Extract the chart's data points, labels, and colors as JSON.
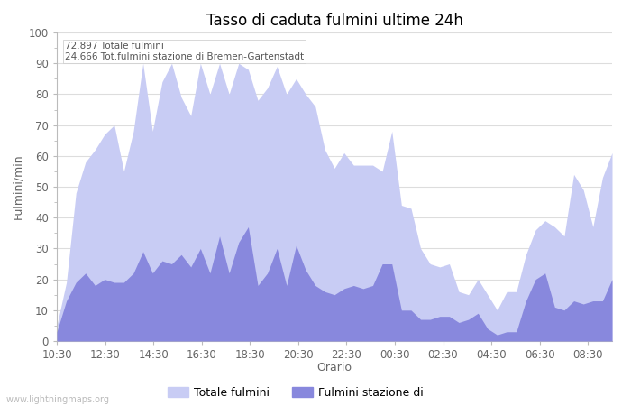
{
  "title": "Tasso di caduta fulmini ultime 24h",
  "xlabel": "Orario",
  "ylabel": "Fulmini/min",
  "ylim": [
    0,
    100
  ],
  "annotation_line1": "72.897 Totale fulmini",
  "annotation_line2": "24.666 Tot.fulmini stazione di Bremen-Gartenstadt",
  "color_total": "#c8ccf4",
  "color_station": "#8888dd",
  "legend_label_total": "Totale fulmini",
  "legend_label_station": "Fulmini stazione di",
  "watermark": "www.lightningmaps.org",
  "x_labels": [
    "10:30",
    "12:30",
    "14:30",
    "16:30",
    "18:30",
    "20:30",
    "22:30",
    "00:30",
    "02:30",
    "04:30",
    "06:30",
    "08:30"
  ],
  "total_values": [
    5,
    19,
    48,
    58,
    62,
    67,
    70,
    55,
    68,
    90,
    68,
    84,
    90,
    79,
    73,
    90,
    80,
    90,
    80,
    90,
    88,
    78,
    82,
    89,
    80,
    85,
    80,
    76,
    62,
    56,
    61,
    57,
    57,
    57,
    55,
    68,
    44,
    43,
    30,
    25,
    24,
    25,
    16,
    15,
    20,
    15,
    10,
    16,
    16,
    28,
    36,
    39,
    37,
    34,
    54,
    49,
    37,
    53,
    61
  ],
  "station_values": [
    3,
    13,
    19,
    22,
    18,
    20,
    19,
    19,
    22,
    29,
    22,
    26,
    25,
    28,
    24,
    30,
    22,
    34,
    22,
    32,
    37,
    18,
    22,
    30,
    18,
    31,
    23,
    18,
    16,
    15,
    17,
    18,
    17,
    18,
    25,
    25,
    10,
    10,
    7,
    7,
    8,
    8,
    6,
    7,
    9,
    4,
    2,
    3,
    3,
    13,
    20,
    22,
    11,
    10,
    13,
    12,
    13,
    13,
    20
  ],
  "n_points": 59
}
